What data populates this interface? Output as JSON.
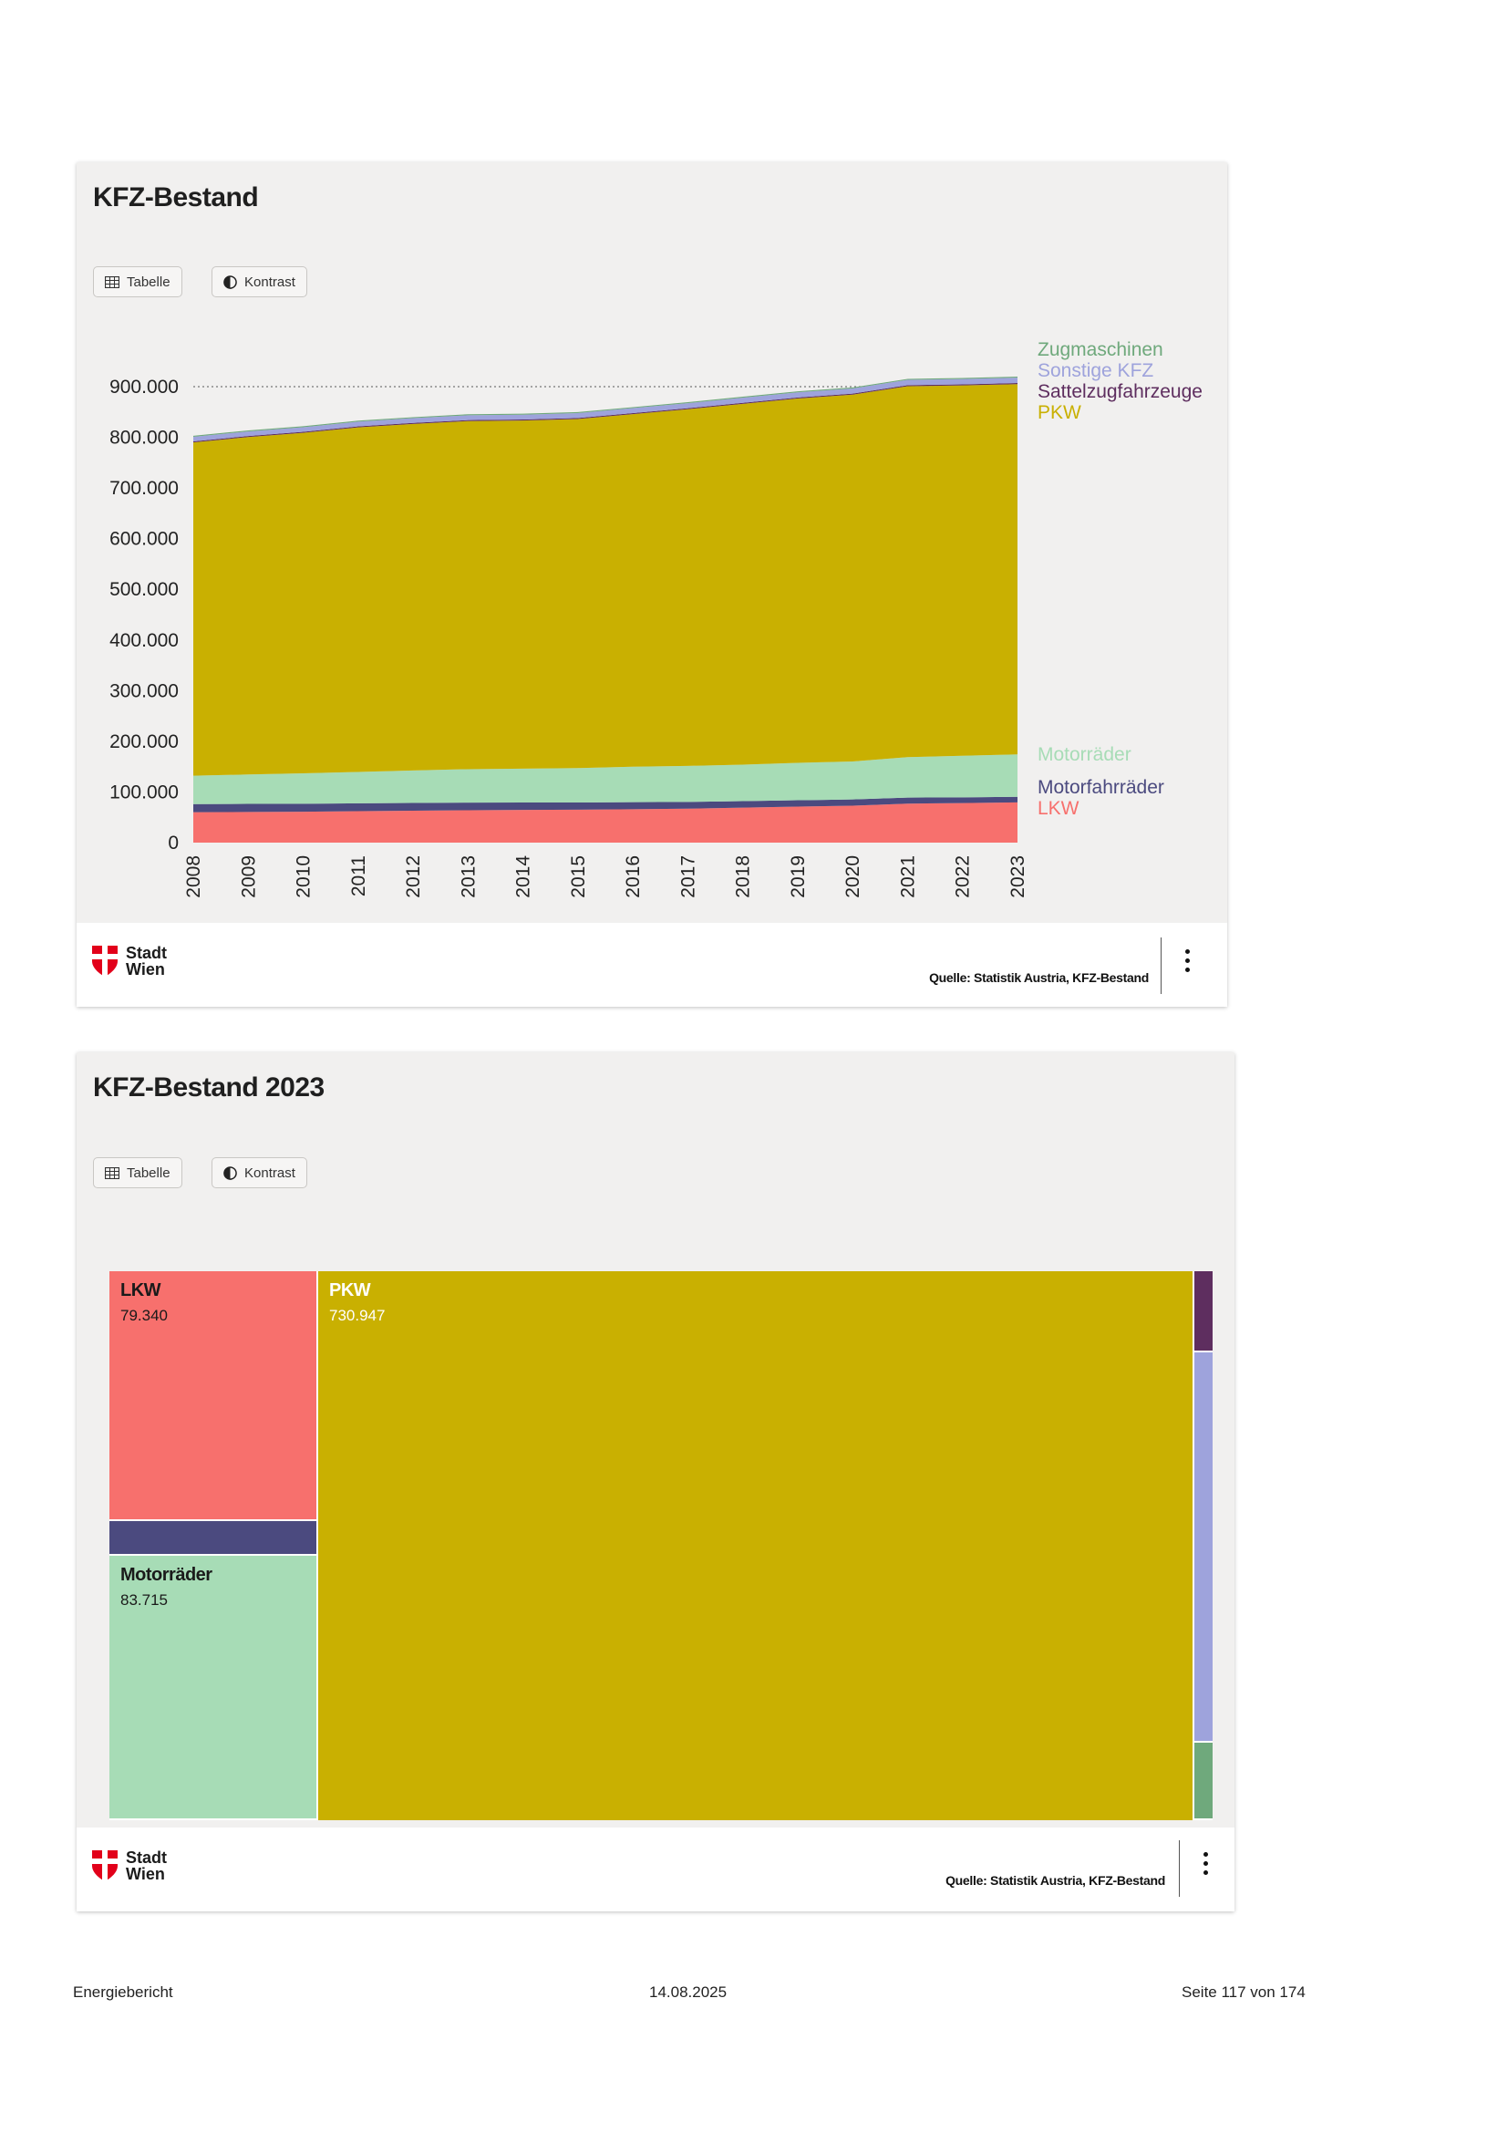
{
  "page": {
    "footer_left": "Energiebericht",
    "footer_center": "14.08.2025",
    "footer_right": "Seite 117 von 174"
  },
  "buttons": {
    "table": "Tabelle",
    "contrast": "Kontrast"
  },
  "logo": {
    "line1": "Stadt",
    "line2": "Wien"
  },
  "colors": {
    "card_bg": "#f1f0ef",
    "LKW": "#f7706d",
    "Motorfahrraeder": "#4b4a7f",
    "Motorraeder": "#a7dcb6",
    "PKW": "#c9b001",
    "Sattelzugfahrzeuge": "#5e2e5f",
    "Sonstige_KFZ": "#9ea3dc",
    "Zugmaschinen": "#6fa97c"
  },
  "chart_data": [
    {
      "type": "area",
      "stacked": true,
      "title": "KFZ-Bestand",
      "source": "Quelle: Statistik Austria, KFZ-Bestand",
      "x": [
        "2008",
        "2009",
        "2010",
        "2011",
        "2012",
        "2013",
        "2014",
        "2015",
        "2016",
        "2017",
        "2018",
        "2019",
        "2020",
        "2021",
        "2022",
        "2023"
      ],
      "ylim": [
        0,
        900000
      ],
      "yticks": [
        "0",
        "100.000",
        "200.000",
        "300.000",
        "400.000",
        "500.000",
        "600.000",
        "700.000",
        "800.000",
        "900.000"
      ],
      "reference_line": 900000,
      "series": [
        {
          "name": "LKW",
          "values": [
            60000,
            60500,
            61000,
            62000,
            63000,
            64000,
            64500,
            65000,
            66000,
            67000,
            69000,
            71000,
            73000,
            77000,
            78000,
            79340
          ]
        },
        {
          "name": "Motorfahrräder",
          "values": [
            16000,
            16000,
            15800,
            15600,
            15400,
            15000,
            14600,
            14200,
            13800,
            13400,
            13000,
            12600,
            12200,
            11800,
            11400,
            11000
          ]
        },
        {
          "name": "Motorräder",
          "values": [
            56000,
            58000,
            60000,
            62000,
            64000,
            66000,
            67000,
            68000,
            70000,
            71000,
            72000,
            74000,
            75000,
            80000,
            82000,
            83715
          ]
        },
        {
          "name": "PKW",
          "values": [
            658000,
            666000,
            672000,
            680000,
            684000,
            687000,
            687000,
            689000,
            696000,
            704000,
            712000,
            719000,
            724000,
            732000,
            731000,
            730947
          ]
        },
        {
          "name": "Sattelzugfahrzeuge",
          "values": [
            2000,
            2000,
            2000,
            2000,
            2000,
            2000,
            2000,
            2000,
            2000,
            2100,
            2100,
            2100,
            2100,
            2200,
            2200,
            2200
          ]
        },
        {
          "name": "Sonstige KFZ",
          "values": [
            9000,
            9100,
            9200,
            9300,
            9400,
            9500,
            9600,
            9700,
            9800,
            9900,
            10000,
            10100,
            10200,
            10400,
            10500,
            10600
          ]
        },
        {
          "name": "Zugmaschinen",
          "values": [
            2000,
            2000,
            2000,
            2000,
            2000,
            2000,
            2000,
            2000,
            2000,
            2000,
            2000,
            2000,
            2000,
            2000,
            2000,
            2100
          ]
        }
      ],
      "legend_top": [
        "Zugmaschinen",
        "Sonstige KFZ",
        "Sattelzugfahrzeuge",
        "PKW"
      ],
      "legend_mid": [
        "Motorräder"
      ],
      "legend_bottom": [
        "Motorfahrräder",
        "LKW"
      ]
    },
    {
      "type": "treemap",
      "title": "KFZ-Bestand 2023",
      "source": "Quelle: Statistik Austria, KFZ-Bestand",
      "items": [
        {
          "name": "LKW",
          "value": 79340,
          "value_label": "79.340",
          "show_label": true
        },
        {
          "name": "Motorfahrräder",
          "value": 11000,
          "value_label": "",
          "show_label": false
        },
        {
          "name": "Motorräder",
          "value": 83715,
          "value_label": "83.715",
          "show_label": true
        },
        {
          "name": "PKW",
          "value": 730947,
          "value_label": "730.947",
          "show_label": true
        },
        {
          "name": "Sattelzugfahrzeuge",
          "value": 2200,
          "value_label": "",
          "show_label": false
        },
        {
          "name": "Sonstige KFZ",
          "value": 10600,
          "value_label": "",
          "show_label": false
        },
        {
          "name": "Zugmaschinen",
          "value": 2100,
          "value_label": "",
          "show_label": false
        }
      ]
    }
  ]
}
